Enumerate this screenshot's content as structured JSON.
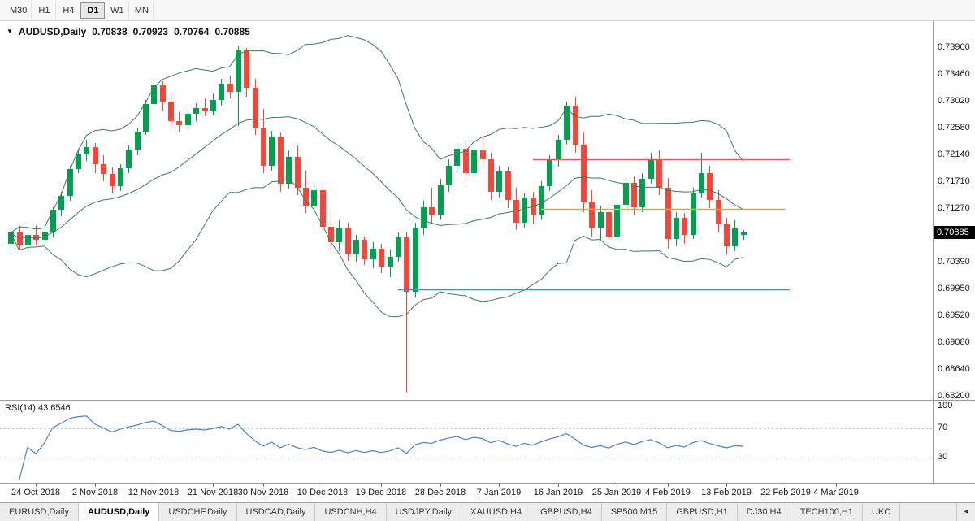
{
  "toolbar": {
    "timeframes": [
      {
        "label": "M30",
        "active": false
      },
      {
        "label": "H1",
        "active": false
      },
      {
        "label": "H4",
        "active": false
      },
      {
        "label": "D1",
        "active": true
      },
      {
        "label": "W1",
        "active": false
      },
      {
        "label": "MN",
        "active": false
      }
    ]
  },
  "chart_title": {
    "dropdown_icon": "▼",
    "symbol": "AUDUSD,Daily",
    "open": "0.70838",
    "high": "0.70923",
    "low": "0.70764",
    "close": "0.70885"
  },
  "chart_data": {
    "type": "candlestick",
    "title": "AUDUSD,Daily",
    "current_price": "0.70885",
    "price_axis_labels": [
      "0.73900",
      "0.73460",
      "0.73020",
      "0.72580",
      "0.72140",
      "0.71710",
      "0.71270",
      "0.70830",
      "0.70390",
      "0.69950",
      "0.69520",
      "0.69080",
      "0.68640",
      "0.68200"
    ],
    "time_axis_labels": [
      {
        "text": "24 Oct 2018",
        "slot": 3
      },
      {
        "text": "2 Nov 2018",
        "slot": 10
      },
      {
        "text": "12 Nov 2018",
        "slot": 17
      },
      {
        "text": "21 Nov 2018",
        "slot": 24
      },
      {
        "text": "30 Nov 2018",
        "slot": 30
      },
      {
        "text": "10 Dec 2018",
        "slot": 37
      },
      {
        "text": "19 Dec 2018",
        "slot": 44
      },
      {
        "text": "28 Dec 2018",
        "slot": 51
      },
      {
        "text": "7 Jan 2019",
        "slot": 58
      },
      {
        "text": "16 Jan 2019",
        "slot": 65
      },
      {
        "text": "25 Jan 2019",
        "slot": 72
      },
      {
        "text": "4 Feb 2019",
        "slot": 78
      },
      {
        "text": "13 Feb 2019",
        "slot": 85
      },
      {
        "text": "22 Feb 2019",
        "slot": 92
      },
      {
        "text": "4 Mar 2019",
        "slot": 98
      }
    ],
    "slots": 110,
    "colors": {
      "up": "#00a14e",
      "down": "#f94438",
      "background": "#ffffff"
    },
    "bollinger": {
      "period": 20,
      "deviation": 2,
      "color": "#3e7b5e"
    },
    "hlines": [
      {
        "name": "resistance-line",
        "price": 0.7208,
        "color": "#e05d5d",
        "from_slot": 62,
        "to_slot": 92.5
      },
      {
        "name": "mid-support-line",
        "price": 0.7127,
        "color": "#bdbd2e",
        "from_slot": 63,
        "to_slot": 92
      },
      {
        "name": "lower-support-line",
        "price": 0.6995,
        "color": "#4a8bc2",
        "from_slot": 46,
        "to_slot": 92.5
      }
    ],
    "candles": [
      [
        0.707,
        0.7095,
        0.7058,
        0.7088
      ],
      [
        0.7088,
        0.7099,
        0.706,
        0.7069
      ],
      [
        0.7069,
        0.709,
        0.7056,
        0.7084
      ],
      [
        0.7084,
        0.71,
        0.7068,
        0.7076
      ],
      [
        0.7076,
        0.7092,
        0.7057,
        0.7088
      ],
      [
        0.7088,
        0.713,
        0.708,
        0.7126
      ],
      [
        0.7126,
        0.7155,
        0.7115,
        0.7148
      ],
      [
        0.7148,
        0.7198,
        0.714,
        0.7192
      ],
      [
        0.7192,
        0.7225,
        0.7185,
        0.7216
      ],
      [
        0.7216,
        0.724,
        0.7205,
        0.7228
      ],
      [
        0.7228,
        0.7235,
        0.7185,
        0.72
      ],
      [
        0.72,
        0.7215,
        0.7172,
        0.7184
      ],
      [
        0.7184,
        0.7195,
        0.7152,
        0.7164
      ],
      [
        0.7164,
        0.72,
        0.7156,
        0.7193
      ],
      [
        0.7193,
        0.723,
        0.7185,
        0.7224
      ],
      [
        0.7224,
        0.726,
        0.7215,
        0.7253
      ],
      [
        0.7253,
        0.7305,
        0.7248,
        0.7298
      ],
      [
        0.7298,
        0.7338,
        0.729,
        0.7329
      ],
      [
        0.7329,
        0.7335,
        0.7288,
        0.7302
      ],
      [
        0.7302,
        0.7315,
        0.7258,
        0.727
      ],
      [
        0.727,
        0.7285,
        0.7252,
        0.7264
      ],
      [
        0.7264,
        0.729,
        0.7256,
        0.7283
      ],
      [
        0.7283,
        0.73,
        0.727,
        0.7292
      ],
      [
        0.7292,
        0.7308,
        0.7278,
        0.7287
      ],
      [
        0.7287,
        0.7315,
        0.728,
        0.7305
      ],
      [
        0.7305,
        0.734,
        0.7295,
        0.7332
      ],
      [
        0.7332,
        0.7345,
        0.7308,
        0.7318
      ],
      [
        0.7318,
        0.7394,
        0.7262,
        0.7388
      ],
      [
        0.7388,
        0.739,
        0.731,
        0.7325
      ],
      [
        0.7325,
        0.734,
        0.7248,
        0.7258
      ],
      [
        0.7258,
        0.729,
        0.7185,
        0.7198
      ],
      [
        0.7198,
        0.7255,
        0.719,
        0.7245
      ],
      [
        0.7245,
        0.7252,
        0.7155,
        0.7168
      ],
      [
        0.7168,
        0.7222,
        0.716,
        0.7212
      ],
      [
        0.7212,
        0.723,
        0.715,
        0.7162
      ],
      [
        0.7162,
        0.719,
        0.712,
        0.7132
      ],
      [
        0.7132,
        0.717,
        0.7122,
        0.7158
      ],
      [
        0.7158,
        0.7168,
        0.7088,
        0.7098
      ],
      [
        0.7098,
        0.712,
        0.706,
        0.7072
      ],
      [
        0.7072,
        0.7108,
        0.7058,
        0.7096
      ],
      [
        0.7096,
        0.7104,
        0.7042,
        0.7052
      ],
      [
        0.7052,
        0.7085,
        0.704,
        0.7076
      ],
      [
        0.7076,
        0.7082,
        0.7035,
        0.7044
      ],
      [
        0.7044,
        0.7072,
        0.703,
        0.7062
      ],
      [
        0.7062,
        0.707,
        0.7022,
        0.7032
      ],
      [
        0.7032,
        0.706,
        0.7015,
        0.7048
      ],
      [
        0.7048,
        0.7088,
        0.704,
        0.708
      ],
      [
        0.708,
        0.709,
        0.6826,
        0.6992
      ],
      [
        0.6992,
        0.7105,
        0.6982,
        0.7096
      ],
      [
        0.7096,
        0.714,
        0.7085,
        0.713
      ],
      [
        0.713,
        0.7162,
        0.7105,
        0.7118
      ],
      [
        0.7118,
        0.7176,
        0.711,
        0.7165
      ],
      [
        0.7165,
        0.7208,
        0.7155,
        0.7198
      ],
      [
        0.7198,
        0.7235,
        0.7185,
        0.7225
      ],
      [
        0.7225,
        0.724,
        0.717,
        0.7186
      ],
      [
        0.7186,
        0.7232,
        0.7178,
        0.7222
      ],
      [
        0.7222,
        0.7248,
        0.7196,
        0.7208
      ],
      [
        0.7208,
        0.7218,
        0.7142,
        0.7155
      ],
      [
        0.7155,
        0.7198,
        0.7145,
        0.7188
      ],
      [
        0.7188,
        0.7196,
        0.7128,
        0.7142
      ],
      [
        0.7142,
        0.7162,
        0.7092,
        0.7105
      ],
      [
        0.7105,
        0.7152,
        0.7096,
        0.7145
      ],
      [
        0.7145,
        0.7155,
        0.7102,
        0.7118
      ],
      [
        0.7118,
        0.7172,
        0.711,
        0.7164
      ],
      [
        0.7164,
        0.7215,
        0.7156,
        0.7206
      ],
      [
        0.7206,
        0.7248,
        0.7196,
        0.724
      ],
      [
        0.724,
        0.7302,
        0.7232,
        0.7295
      ],
      [
        0.7295,
        0.731,
        0.7218,
        0.7232
      ],
      [
        0.7232,
        0.7252,
        0.7122,
        0.7138
      ],
      [
        0.7138,
        0.7158,
        0.7082,
        0.7096
      ],
      [
        0.7096,
        0.7132,
        0.7076,
        0.7122
      ],
      [
        0.7122,
        0.713,
        0.7068,
        0.7082
      ],
      [
        0.7082,
        0.7142,
        0.7075,
        0.7134
      ],
      [
        0.7134,
        0.7178,
        0.7126,
        0.717
      ],
      [
        0.717,
        0.718,
        0.7118,
        0.713
      ],
      [
        0.713,
        0.7185,
        0.7122,
        0.7176
      ],
      [
        0.7176,
        0.7218,
        0.7168,
        0.7208
      ],
      [
        0.7208,
        0.7222,
        0.715,
        0.7162
      ],
      [
        0.7162,
        0.7178,
        0.7062,
        0.7078
      ],
      [
        0.7078,
        0.7122,
        0.7066,
        0.7112
      ],
      [
        0.7112,
        0.712,
        0.707,
        0.7085
      ],
      [
        0.7085,
        0.7162,
        0.7078,
        0.7152
      ],
      [
        0.7152,
        0.7218,
        0.7146,
        0.7186
      ],
      [
        0.7186,
        0.7198,
        0.7128,
        0.7142
      ],
      [
        0.7142,
        0.7158,
        0.7088,
        0.7102
      ],
      [
        0.7102,
        0.7112,
        0.7052,
        0.7066
      ],
      [
        0.7066,
        0.7108,
        0.7058,
        0.7095
      ],
      [
        0.70838,
        0.70923,
        0.70764,
        0.70885
      ]
    ],
    "rsi": {
      "label": "RSI(14) 43.6546",
      "period": 14,
      "value": 43.6546,
      "color": "#4f81bd",
      "level_line_color": "#b8b8b8",
      "levels": [
        {
          "text": "100",
          "value": 100,
          "line": false
        },
        {
          "text": "70",
          "value": 70,
          "line": true
        },
        {
          "text": "30",
          "value": 30,
          "line": true
        }
      ]
    }
  },
  "tabs": {
    "scroll_left": "◂",
    "items": [
      {
        "label": "EURUSD,Daily",
        "active": false
      },
      {
        "label": "AUDUSD,Daily",
        "active": true
      },
      {
        "label": "USDCHF,Daily",
        "active": false
      },
      {
        "label": "USDCAD,Daily",
        "active": false
      },
      {
        "label": "USDCNH,H4",
        "active": false
      },
      {
        "label": "USDJPY,Daily",
        "active": false
      },
      {
        "label": "XAUUSD,H4",
        "active": false
      },
      {
        "label": "GBPUSD,H4",
        "active": false
      },
      {
        "label": "SP500,M15",
        "active": false
      },
      {
        "label": "GBPUSD,H1",
        "active": false
      },
      {
        "label": "DJ30,H4",
        "active": false
      },
      {
        "label": "TECH100,H1",
        "active": false
      },
      {
        "label": "UKC",
        "active": false
      }
    ]
  }
}
